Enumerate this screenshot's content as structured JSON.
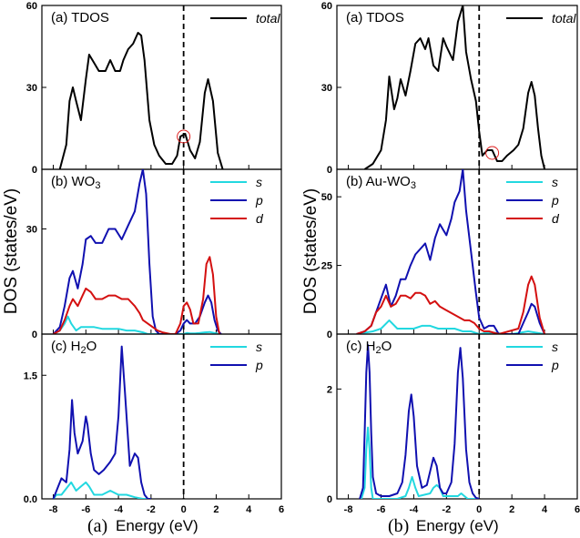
{
  "figure": {
    "ylabel": "DOS (states/eV)",
    "xlabel": "Energy (eV)",
    "colors": {
      "s": "#22d8e0",
      "p": "#1010b0",
      "d": "#d41010",
      "total": "#000000",
      "marker": "#e02020"
    }
  },
  "chart_data": [
    {
      "caption": "(a)",
      "panels": [
        {
          "label": "(a) TDOS",
          "ylim": [
            0,
            60
          ],
          "yticks": [
            "0",
            "30",
            "60"
          ],
          "legend": [
            "total"
          ],
          "series": [
            {
              "name": "total",
              "color": "#000000",
              "x": [
                -7.6,
                -7.2,
                -7.0,
                -6.8,
                -6.6,
                -6.3,
                -6.0,
                -5.8,
                -5.5,
                -5.2,
                -4.8,
                -4.5,
                -4.2,
                -3.9,
                -3.7,
                -3.4,
                -3.1,
                -2.8,
                -2.6,
                -2.4,
                -2.1,
                -1.8,
                -1.5,
                -1.1,
                -0.7,
                -0.4,
                -0.2,
                0.1,
                0.4,
                0.7,
                1.0,
                1.3,
                1.5,
                1.8,
                2.1,
                2.4
              ],
              "y": [
                0,
                9,
                25,
                30,
                25,
                18,
                33,
                42,
                39,
                36,
                36,
                40,
                36,
                36,
                40,
                44,
                46,
                50,
                49,
                40,
                18,
                9,
                5,
                2,
                2,
                5,
                12,
                13,
                7,
                4,
                10,
                28,
                33,
                25,
                6,
                0
              ]
            }
          ],
          "marker": {
            "x": 0.0,
            "y": 12
          }
        },
        {
          "label": "(b) WO3",
          "ylim": [
            0,
            47
          ],
          "yticks": [
            "0",
            "30"
          ],
          "legend": [
            "s",
            "p",
            "d"
          ],
          "series": [
            {
              "name": "s",
              "color": "#22d8e0",
              "x": [
                -8,
                -7.6,
                -7.3,
                -7.1,
                -6.9,
                -6.6,
                -6.3,
                -6.0,
                -5.5,
                -5.0,
                -4.5,
                -4.0,
                -3.5,
                -3.0,
                -2.5,
                -2.2,
                -2.0,
                0,
                0.2,
                0.4,
                0.7,
                1.0,
                1.3,
                1.6,
                1.9,
                2.2
              ],
              "y": [
                0,
                1,
                3,
                5,
                3,
                1,
                2,
                2,
                2,
                1.5,
                1.5,
                1.5,
                1,
                1,
                0.5,
                0,
                0,
                0,
                0.3,
                0.2,
                0.2,
                0.3,
                0.5,
                0.6,
                0.3,
                0
              ]
            },
            {
              "name": "p",
              "color": "#1010b0",
              "x": [
                -8,
                -7.6,
                -7.3,
                -7.0,
                -6.8,
                -6.5,
                -6.2,
                -6.0,
                -5.7,
                -5.4,
                -5.0,
                -4.6,
                -4.2,
                -3.8,
                -3.4,
                -3.0,
                -2.7,
                -2.5,
                -2.3,
                -2.1,
                -1.9,
                -1.7,
                -1.5,
                -0.5,
                -0.2,
                0.0,
                0.2,
                0.4,
                0.7,
                1.0,
                1.3,
                1.5,
                1.7,
                1.9,
                2.1,
                2.3
              ],
              "y": [
                0,
                2,
                8,
                16,
                18,
                13,
                20,
                27,
                28,
                26,
                26,
                30,
                30,
                27,
                31,
                35,
                43,
                47,
                40,
                20,
                5,
                1,
                0,
                0,
                1,
                3,
                4,
                3,
                3,
                5,
                9,
                11,
                9,
                4,
                1,
                0
              ]
            },
            {
              "name": "d",
              "color": "#d41010",
              "x": [
                -8,
                -7.6,
                -7.3,
                -7.0,
                -6.8,
                -6.5,
                -6.2,
                -6.0,
                -5.7,
                -5.4,
                -5.0,
                -4.6,
                -4.2,
                -3.8,
                -3.4,
                -3.0,
                -2.7,
                -2.5,
                -2.2,
                -1.9,
                -1.6,
                -1.3,
                -0.8,
                -0.5,
                -0.2,
                0.0,
                0.2,
                0.4,
                0.6,
                0.9,
                1.2,
                1.4,
                1.6,
                1.8,
                2.0,
                2.2
              ],
              "y": [
                0,
                1,
                4,
                8,
                10,
                8,
                11,
                13,
                12,
                10,
                10,
                11,
                11,
                10,
                10,
                8,
                6,
                4,
                3,
                2,
                1,
                0.5,
                0,
                0,
                3,
                8,
                9,
                7,
                3,
                3,
                10,
                20,
                22,
                17,
                5,
                0
              ]
            }
          ]
        },
        {
          "label": "(c) H2O",
          "ylim": [
            0,
            2.0
          ],
          "yticks": [
            "0.0",
            "1.5"
          ],
          "legend": [
            "s",
            "p"
          ],
          "series": [
            {
              "name": "s",
              "color": "#22d8e0",
              "x": [
                -8,
                -7.8,
                -7.5,
                -7.1,
                -6.9,
                -6.6,
                -6.3,
                -6.0,
                -5.8,
                -5.5,
                -5.0,
                -4.5,
                -4.0,
                -3.5,
                -3.0,
                -2.5,
                -2.0
              ],
              "y": [
                0,
                0.05,
                0.05,
                0.15,
                0.2,
                0.1,
                0.15,
                0.2,
                0.15,
                0.05,
                0.05,
                0.1,
                0.05,
                0.05,
                0.02,
                0,
                0
              ]
            },
            {
              "name": "p",
              "color": "#1010b0",
              "x": [
                -8,
                -7.8,
                -7.5,
                -7.2,
                -7.0,
                -6.85,
                -6.7,
                -6.5,
                -6.2,
                -6.0,
                -5.9,
                -5.7,
                -5.5,
                -5.2,
                -4.9,
                -4.5,
                -4.2,
                -4.0,
                -3.8,
                -3.6,
                -3.3,
                -3.0,
                -2.8,
                -2.6,
                -2.4,
                -2.2,
                -2.0
              ],
              "y": [
                0,
                0.1,
                0.25,
                0.2,
                0.6,
                1.2,
                0.8,
                0.55,
                0.7,
                1.0,
                0.9,
                0.55,
                0.35,
                0.3,
                0.35,
                0.45,
                0.55,
                1.0,
                1.85,
                1.3,
                0.4,
                0.55,
                0.5,
                0.2,
                0.05,
                0,
                0
              ]
            }
          ]
        }
      ]
    },
    {
      "caption": "(b)",
      "panels": [
        {
          "label": "(a) TDOS",
          "ylim": [
            0,
            60
          ],
          "yticks": [
            "0",
            "30",
            "60"
          ],
          "legend": [
            "total"
          ],
          "series": [
            {
              "name": "total",
              "color": "#000000",
              "x": [
                -7.0,
                -6.5,
                -6.0,
                -5.7,
                -5.5,
                -5.2,
                -5.0,
                -4.8,
                -4.5,
                -4.2,
                -3.9,
                -3.6,
                -3.3,
                -3.1,
                -2.8,
                -2.5,
                -2.2,
                -2.0,
                -1.6,
                -1.3,
                -1.0,
                -0.8,
                -0.5,
                -0.2,
                0.0,
                0.2,
                0.5,
                0.8,
                1.1,
                1.4,
                1.7,
                2.1,
                2.4,
                2.7,
                3.0,
                3.2,
                3.4,
                3.6,
                3.8,
                4.0
              ],
              "y": [
                0,
                2,
                7,
                18,
                34,
                22,
                26,
                33,
                27,
                36,
                46,
                48,
                44,
                48,
                38,
                36,
                48,
                45,
                40,
                54,
                60,
                43,
                33,
                25,
                14,
                5,
                7,
                7,
                3,
                3,
                5,
                7,
                9,
                15,
                28,
                32,
                27,
                15,
                5,
                0
              ]
            }
          ],
          "marker": {
            "x": 0.8,
            "y": 6
          }
        },
        {
          "label": "(b) Au-WO3",
          "ylim": [
            0,
            60
          ],
          "yticks": [
            "0",
            "25",
            "50"
          ],
          "legend": [
            "s",
            "p",
            "d"
          ],
          "series": [
            {
              "name": "s",
              "color": "#22d8e0",
              "x": [
                -7.5,
                -7.0,
                -6.5,
                -6.0,
                -5.5,
                -5.0,
                -4.5,
                -4.0,
                -3.5,
                -3.0,
                -2.5,
                -2.0,
                -1.5,
                -1.0,
                -0.5,
                0.0,
                0.5,
                1.0,
                1.5,
                2.0,
                2.5,
                3.0,
                3.5,
                4.0
              ],
              "y": [
                0,
                0.5,
                1,
                2,
                5,
                2,
                2,
                2,
                3,
                3,
                2,
                2,
                2,
                1,
                1,
                0,
                0.5,
                0.5,
                0,
                0,
                0.5,
                1,
                0.5,
                0
              ]
            },
            {
              "name": "p",
              "color": "#1010b0",
              "x": [
                -7.5,
                -7.0,
                -6.6,
                -6.3,
                -6.0,
                -5.7,
                -5.4,
                -5.1,
                -4.8,
                -4.5,
                -4.2,
                -3.9,
                -3.6,
                -3.3,
                -3.0,
                -2.7,
                -2.4,
                -2.2,
                -2.0,
                -1.7,
                -1.5,
                -1.2,
                -1.0,
                -0.8,
                -0.5,
                -0.2,
                0.0,
                0.3,
                0.6,
                0.9,
                1.2,
                2.4,
                2.7,
                3.0,
                3.2,
                3.4,
                3.7,
                4.0
              ],
              "y": [
                0,
                1,
                3,
                8,
                13,
                18,
                10,
                14,
                20,
                20,
                25,
                29,
                31,
                33,
                27,
                35,
                40,
                38,
                36,
                42,
                48,
                52,
                60,
                45,
                30,
                15,
                6,
                2,
                3,
                3,
                0,
                0,
                4,
                8,
                11,
                10,
                4,
                0
              ]
            },
            {
              "name": "d",
              "color": "#d41010",
              "x": [
                -7.5,
                -7.0,
                -6.6,
                -6.3,
                -6.0,
                -5.7,
                -5.4,
                -5.1,
                -4.8,
                -4.5,
                -4.2,
                -3.9,
                -3.6,
                -3.3,
                -3.0,
                -2.7,
                -2.4,
                -2.1,
                -1.8,
                -1.5,
                -1.2,
                -0.9,
                -0.6,
                -0.3,
                0.0,
                0.3,
                0.6,
                0.9,
                1.2,
                2.4,
                2.7,
                3.0,
                3.2,
                3.4,
                3.7,
                4.0
              ],
              "y": [
                0,
                1,
                3,
                8,
                10,
                14,
                10,
                11,
                14,
                14,
                13,
                15,
                15,
                14,
                11,
                12,
                10,
                9,
                8,
                7,
                6,
                5,
                5,
                4,
                2,
                1,
                1,
                0.5,
                0,
                2,
                8,
                18,
                21,
                18,
                6,
                0
              ]
            }
          ]
        },
        {
          "label": "(c) H2O",
          "ylim": [
            0,
            3.0
          ],
          "yticks": [
            "0",
            "2"
          ],
          "legend": [
            "s",
            "p"
          ],
          "series": [
            {
              "name": "s",
              "color": "#22d8e0",
              "x": [
                -7.2,
                -7.0,
                -6.9,
                -6.8,
                -6.7,
                -6.6,
                -6.5,
                -5.0,
                -4.5,
                -4.3,
                -4.1,
                -3.9,
                -3.7,
                -3.0,
                -2.8,
                -2.6,
                -2.4,
                -2.2,
                -1.3,
                -1.1,
                -0.9,
                -0.7,
                0.0
              ],
              "y": [
                0,
                0.2,
                0.9,
                1.3,
                0.9,
                0.2,
                0,
                0,
                0.05,
                0.2,
                0.4,
                0.2,
                0.05,
                0.1,
                0.2,
                0.25,
                0.2,
                0.05,
                0.05,
                0.1,
                0.05,
                0,
                0
              ]
            },
            {
              "name": "p",
              "color": "#1010b0",
              "x": [
                -7.3,
                -7.1,
                -7.0,
                -6.9,
                -6.8,
                -6.7,
                -6.6,
                -6.5,
                -6.3,
                -6.0,
                -5.5,
                -5.0,
                -4.7,
                -4.5,
                -4.3,
                -4.15,
                -4.0,
                -3.8,
                -3.5,
                -3.2,
                -3.0,
                -2.8,
                -2.6,
                -2.4,
                -2.2,
                -2.0,
                -1.7,
                -1.5,
                -1.3,
                -1.15,
                -1.0,
                -0.8,
                -0.6,
                -0.4,
                -0.2,
                0.0
              ],
              "y": [
                0,
                0.2,
                1.2,
                2.3,
                2.8,
                2.3,
                1.2,
                0.4,
                0.1,
                0.05,
                0.05,
                0.1,
                0.3,
                0.8,
                1.6,
                1.9,
                1.5,
                0.6,
                0.2,
                0.25,
                0.5,
                0.75,
                0.6,
                0.2,
                0.1,
                0.1,
                0.3,
                1.0,
                2.3,
                2.75,
                2.2,
                0.9,
                0.3,
                0.1,
                0.02,
                0
              ]
            }
          ]
        }
      ]
    }
  ]
}
